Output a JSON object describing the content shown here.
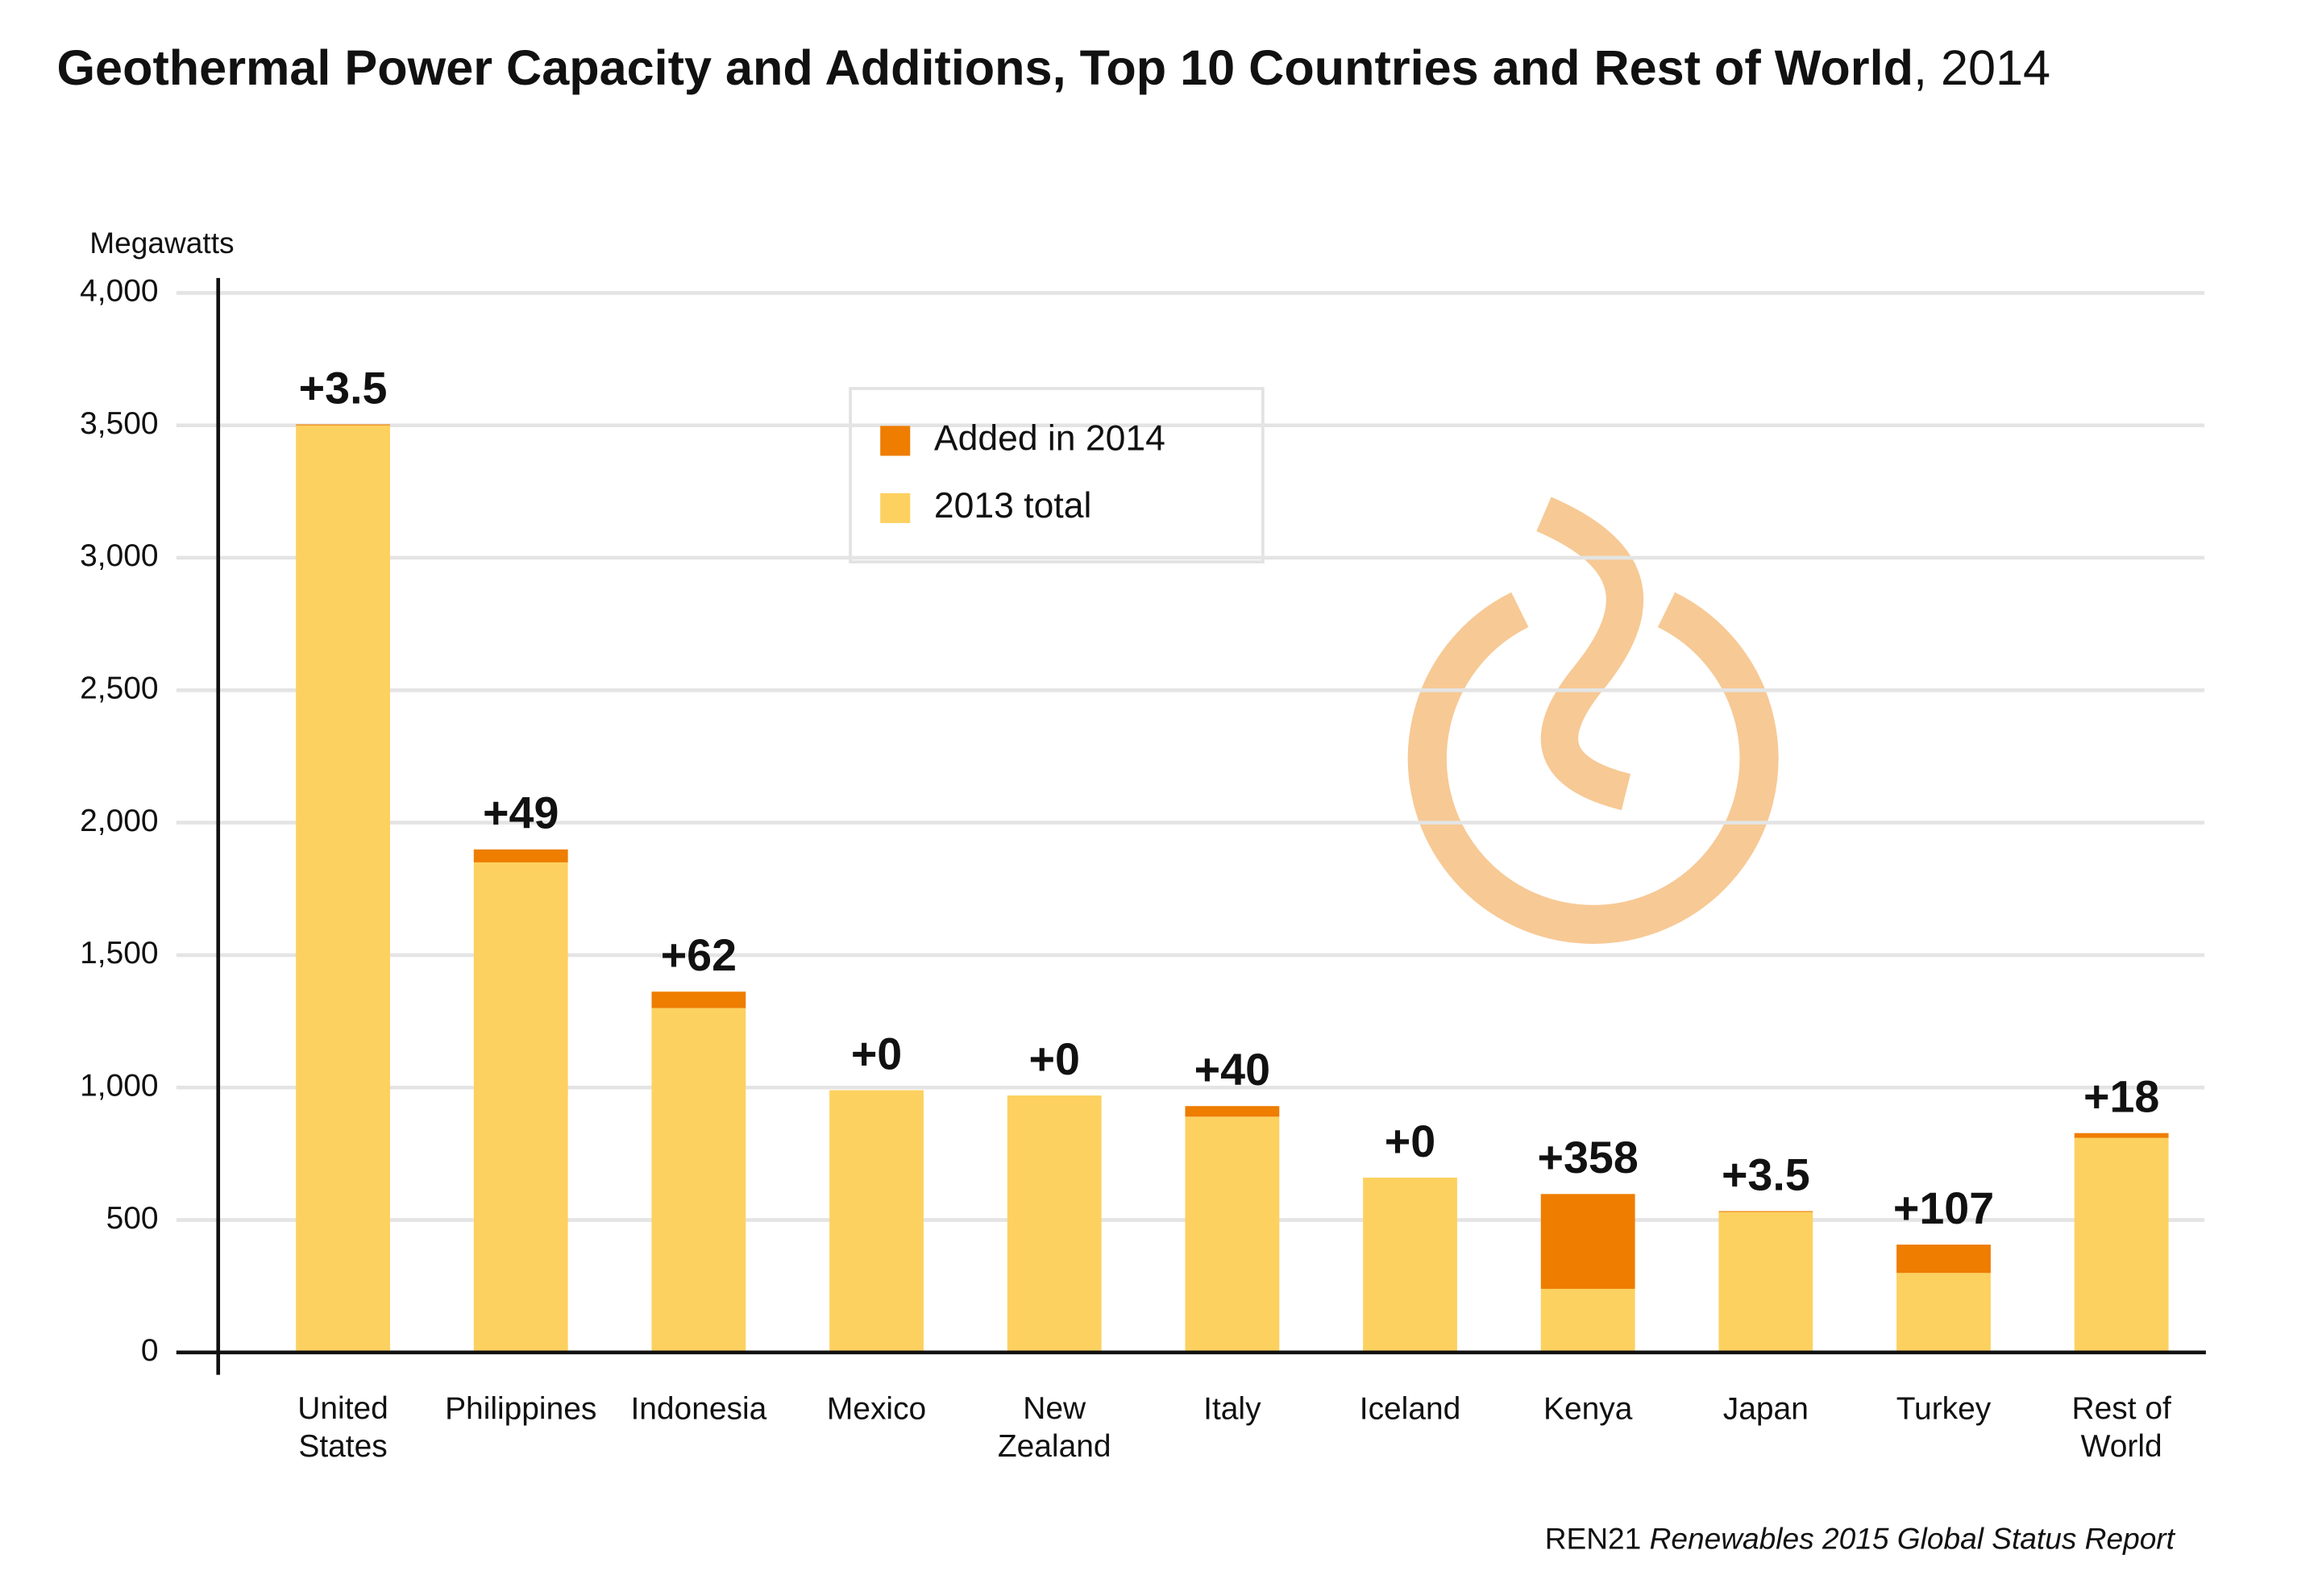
{
  "chart_data": {
    "type": "stacked-bar",
    "title": "Geothermal Power Capacity and Additions, Top 10 Countries and Rest of World",
    "title_year": ", 2014",
    "y_label": "Megawatts",
    "categories": [
      "United\nStates",
      "Philippines",
      "Indonesia",
      "Mexico",
      "New\nZealand",
      "Italy",
      "Iceland",
      "Kenya",
      "Japan",
      "Turkey",
      "Rest of\nWorld"
    ],
    "series": [
      {
        "name": "2013 total",
        "color": "#fdd160",
        "values": [
          3500,
          1850,
          1300,
          990,
          970,
          890,
          660,
          240,
          530,
          300,
          810
        ]
      },
      {
        "name": "Added in 2014",
        "color": "#ee7d00",
        "values": [
          3.5,
          49,
          62,
          0,
          0,
          40,
          0,
          358,
          3.5,
          107,
          18
        ],
        "value_labels": [
          "+3.5",
          "+49",
          "+62",
          "+0",
          "+0",
          "+40",
          "+0",
          "+358",
          "+3.5",
          "+107",
          "+18"
        ]
      }
    ],
    "ylim": [
      0,
      4000
    ],
    "yticks": [
      0,
      500,
      {
        "value": 1000,
        "label": "1,000"
      },
      {
        "value": 1500,
        "label": "1,500"
      },
      {
        "value": 2000,
        "label": "2,000"
      },
      {
        "value": 2500,
        "label": "2,500"
      },
      {
        "value": 3000,
        "label": "3,000"
      },
      {
        "value": 3500,
        "label": "3,500"
      },
      {
        "value": 4000,
        "label": "4,000"
      }
    ],
    "grid": true,
    "source": {
      "org": "REN21",
      "publication": "Renewables 2015 Global Status Report"
    }
  }
}
